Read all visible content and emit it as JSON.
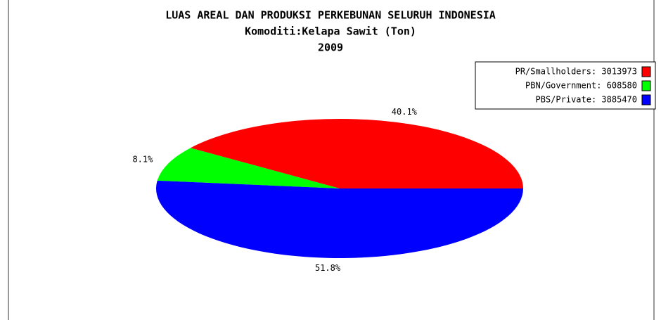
{
  "chart_data": {
    "type": "pie",
    "title": "LUAS AREAL DAN PRODUKSI PERKEBUNAN SELURUH INDONESIA",
    "subtitle": "Komoditi:Kelapa Sawit (Ton)",
    "year": "2009",
    "labels": [
      "PR/Smallholders: 3013973",
      "PBN/Government: 608580",
      "PBS/Private: 3885470"
    ],
    "values": [
      40.1,
      8.1,
      51.8
    ],
    "value_labels": [
      "40.1%",
      "8.1%",
      "51.8%"
    ],
    "colors": [
      "#ff0000",
      "#00ff00",
      "#0000ff"
    ],
    "legend": "top-right"
  }
}
